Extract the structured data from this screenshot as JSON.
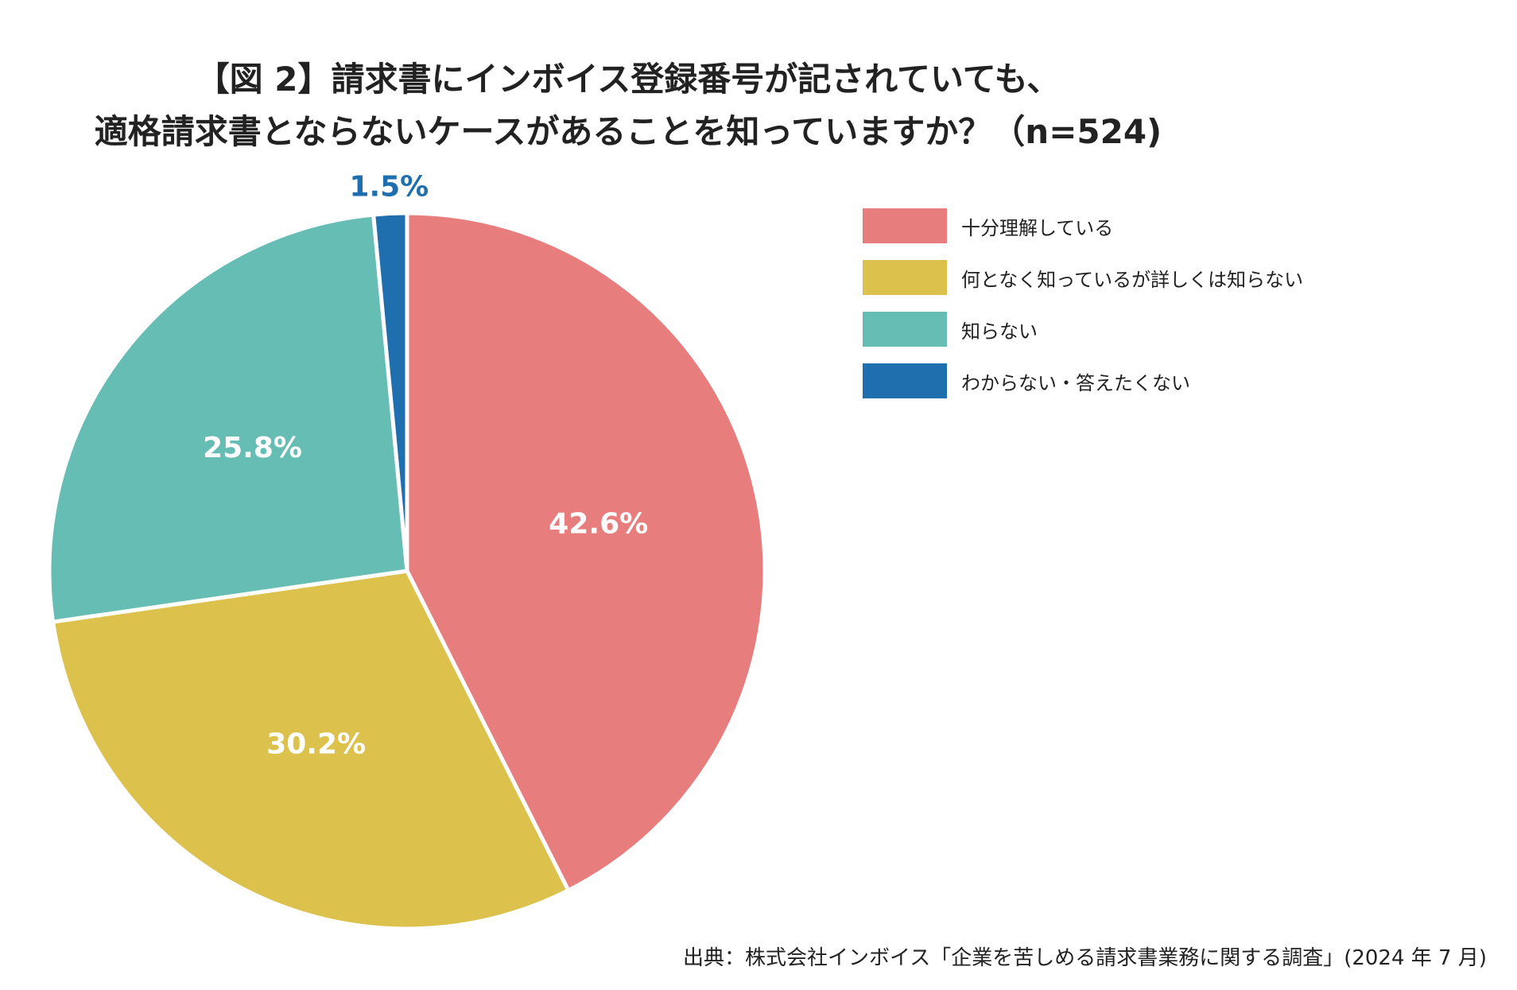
{
  "chart_data": {
    "type": "pie",
    "title_lines": [
      "【図 2】請求書にインボイス登録番号が記されていても、",
      "適格請求書とならないケースがあることを知っていますか？（n=524)"
    ],
    "categories": [
      "十分理解している",
      "何となく知っているが詳しくは知らない",
      "知らない",
      "わからない・答えたくない"
    ],
    "values": [
      42.6,
      30.2,
      25.8,
      1.5
    ],
    "value_labels": [
      "42.6%",
      "30.2%",
      "25.8%",
      "1.5%"
    ],
    "colors": [
      "#E87D7D",
      "#DCC24C",
      "#66BDB3",
      "#1F6FAE"
    ],
    "legend_position": "right",
    "source": "出典：株式会社インボイス「企業を苦しめる請求書業務に関する調査」(2024 年 7 月)"
  }
}
